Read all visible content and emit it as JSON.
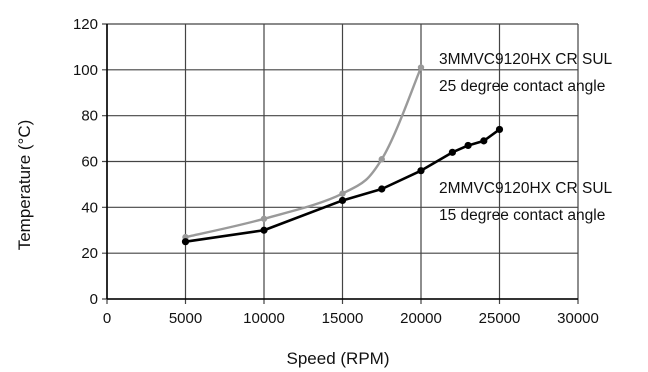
{
  "chart_data": {
    "type": "line",
    "xlabel": "Speed (RPM)",
    "ylabel": "Temperature (°C)",
    "xlim": [
      0,
      30000
    ],
    "ylim": [
      0,
      120
    ],
    "xticks": [
      0,
      5000,
      10000,
      15000,
      20000,
      25000,
      30000
    ],
    "yticks": [
      0,
      20,
      40,
      60,
      80,
      100,
      120
    ],
    "grid": true,
    "series": [
      {
        "color": "#9a9a9a",
        "x": [
          5000,
          10000,
          15000,
          17500,
          20000
        ],
        "y": [
          27,
          35,
          46,
          61,
          101
        ],
        "annotation": [
          "3MMVC9120HX CR SUL",
          "25 degree contact angle"
        ]
      },
      {
        "color": "#000000",
        "x": [
          5000,
          10000,
          15000,
          17500,
          20000,
          22000,
          23000,
          24000,
          25000
        ],
        "y": [
          25,
          30,
          43,
          48,
          56,
          64,
          67,
          69,
          74
        ],
        "annotation": [
          "2MMVC9120HX CR SUL",
          "15 degree contact angle"
        ]
      }
    ]
  }
}
